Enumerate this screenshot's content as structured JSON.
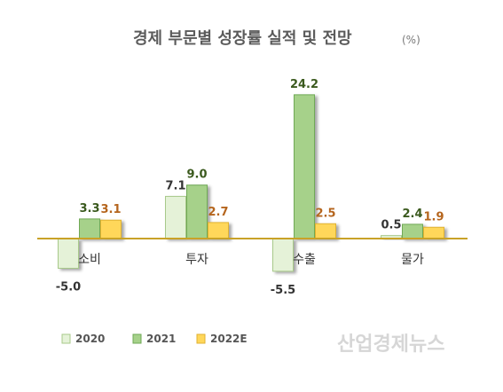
{
  "chart_data": {
    "type": "bar",
    "title": "경제 부문별 성장률 실적 및 전망",
    "unit": "(%)",
    "categories": [
      "소비",
      "투자",
      "수출",
      "물가"
    ],
    "series": [
      {
        "name": "2020",
        "values": [
          -5.0,
          7.1,
          -5.5,
          0.5
        ],
        "color": "#e5f2d8",
        "stroke": "#a8c98a",
        "label_color": "#333333"
      },
      {
        "name": "2021",
        "values": [
          3.3,
          9.0,
          24.2,
          2.4
        ],
        "color": "#a6d18a",
        "stroke": "#6fa955",
        "label_color": "#3b5a1e"
      },
      {
        "name": "2022E",
        "values": [
          3.1,
          2.7,
          2.5,
          1.9
        ],
        "color": "#ffd75a",
        "stroke": "#e0b232",
        "label_color": "#b5651d"
      }
    ],
    "value_labels": [
      [
        "-5.0",
        "7.1",
        "-5.5",
        "0.5"
      ],
      [
        "3.3",
        "9.0",
        "24.2",
        "2.4"
      ],
      [
        "3.1",
        "2.7",
        "2.5",
        "1.9"
      ]
    ],
    "ylim": [
      -7,
      28
    ],
    "axis_color": "#c9a227",
    "legend_position": "bottom-left",
    "grid": false
  },
  "watermark": "산업경제뉴스"
}
